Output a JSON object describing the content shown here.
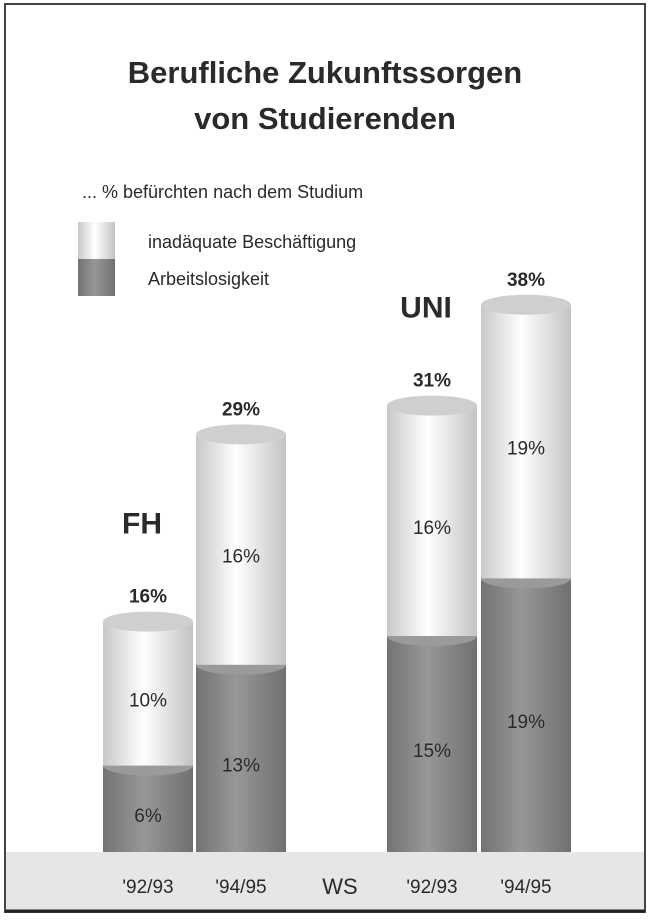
{
  "chart_data": {
    "type": "stacked_bar",
    "title": [
      "Berufliche Zukunftssorgen",
      "von Studierenden"
    ],
    "subtitle": "... % befürchten nach dem Studium",
    "x_label": "WS",
    "groups": [
      "FH",
      "UNI"
    ],
    "categories": [
      "'92/93",
      "'94/95",
      "'92/93",
      "'94/95"
    ],
    "series": [
      {
        "name": "Arbeitslosigkeit",
        "color": "#8c8c8c",
        "values": [
          6,
          13,
          15,
          19
        ],
        "value_labels": [
          "6%",
          "13%",
          "15%",
          "19%"
        ]
      },
      {
        "name": "inadäquate Beschäftigung",
        "color": "#f4f4f4",
        "values": [
          10,
          16,
          16,
          19
        ],
        "value_labels": [
          "10%",
          "16%",
          "16%",
          "19%"
        ]
      }
    ],
    "totals": [
      16,
      29,
      31,
      38
    ],
    "total_labels": [
      "16%",
      "29%",
      "31%",
      "38%"
    ]
  }
}
